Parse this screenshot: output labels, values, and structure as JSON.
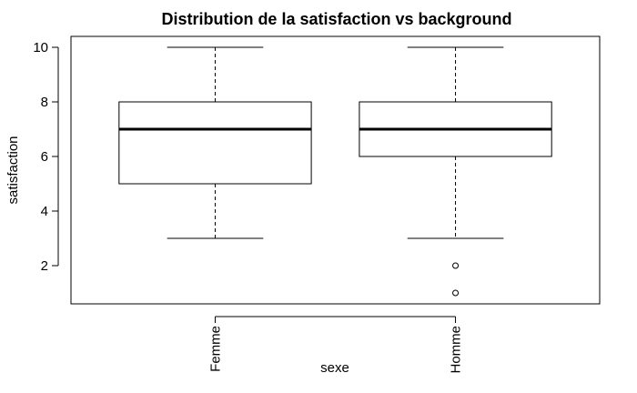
{
  "chart_data": {
    "type": "box",
    "title": "Distribution de la satisfaction vs background",
    "xlabel": "sexe",
    "ylabel": "satisfaction",
    "ylim": [
      0.6,
      10.4
    ],
    "yticks": [
      2,
      4,
      6,
      8,
      10
    ],
    "grid": false,
    "categories": [
      "Femme",
      "Homme"
    ],
    "boxes": [
      {
        "category": "Femme",
        "whisker_low": 3,
        "q1": 5,
        "median": 7,
        "q3": 8,
        "whisker_high": 10,
        "outliers": []
      },
      {
        "category": "Homme",
        "whisker_low": 3,
        "q1": 6,
        "median": 7,
        "q3": 8,
        "whisker_high": 10,
        "outliers": [
          2,
          1
        ]
      }
    ]
  }
}
